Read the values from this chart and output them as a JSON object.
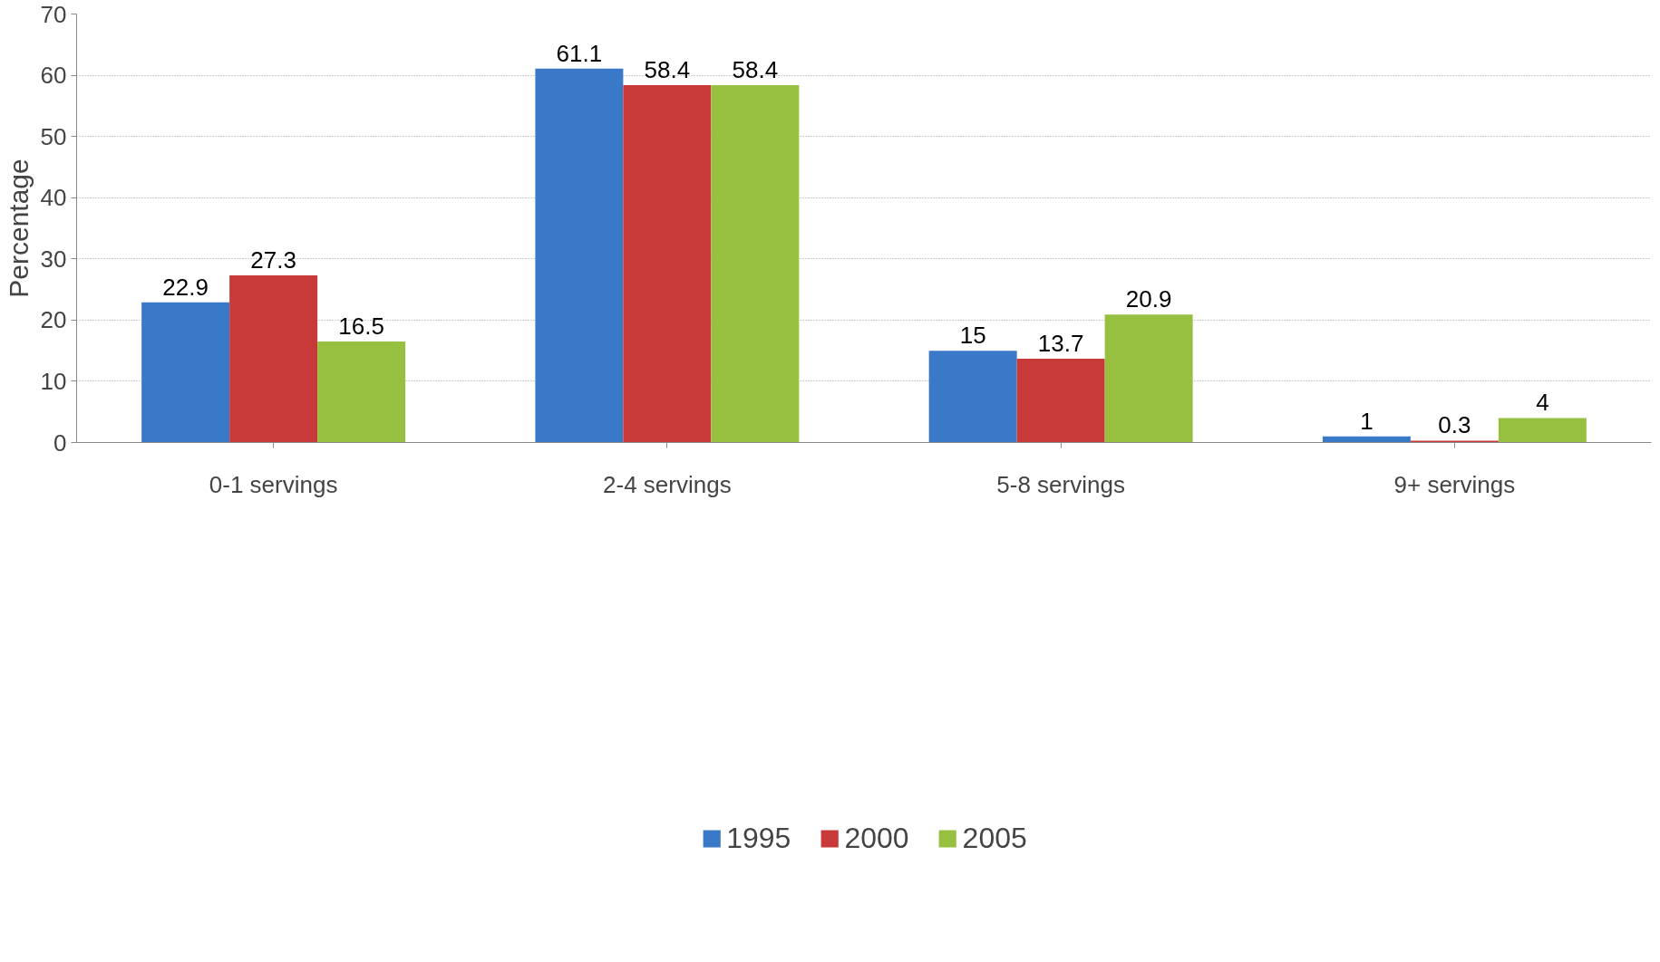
{
  "chart_data": {
    "type": "bar",
    "ylabel": "Percentage",
    "categories": [
      "0-1 servings",
      "2-4 servings",
      "5-8 servings",
      "9+ servings"
    ],
    "series": [
      {
        "name": "1995",
        "color": "#3a78c8",
        "values": [
          22.9,
          61.1,
          15,
          1
        ]
      },
      {
        "name": "2000",
        "color": "#c83a3a",
        "values": [
          27.3,
          58.4,
          13.7,
          0.3
        ]
      },
      {
        "name": "2005",
        "color": "#98c040",
        "values": [
          16.5,
          58.4,
          20.9,
          4
        ]
      }
    ],
    "ylim": [
      0,
      70
    ],
    "yticks": [
      0,
      10,
      20,
      30,
      40,
      50,
      60,
      70
    ],
    "grid": "y",
    "legend": "bottom",
    "data_labels": true
  }
}
